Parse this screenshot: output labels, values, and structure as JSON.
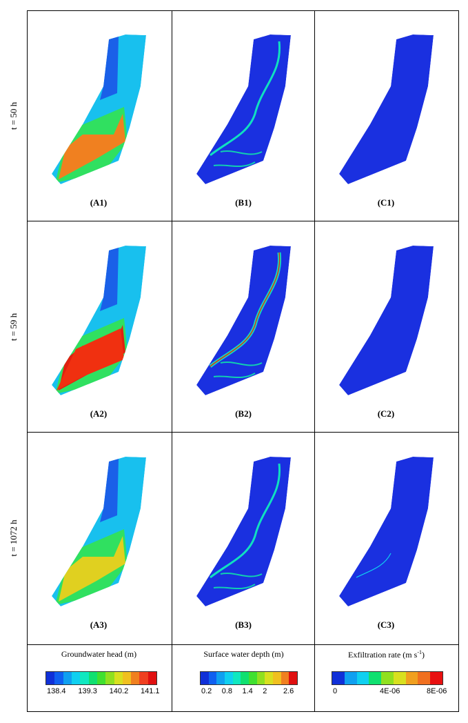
{
  "rows": [
    {
      "label": "t = 50 h"
    },
    {
      "label": "t = 59 h"
    },
    {
      "label": "t = 1072 h"
    }
  ],
  "panels": [
    [
      "(A1)",
      "(B1)",
      "(C1)"
    ],
    [
      "(A2)",
      "(B2)",
      "(C2)"
    ],
    [
      "(A3)",
      "(B3)",
      "(C3)"
    ]
  ],
  "legends": [
    {
      "title": "Groundwater head (m)",
      "ticks": [
        "138.4",
        "139.3",
        "140.2",
        "141.1"
      ],
      "colors": [
        "#1030d8",
        "#1060f0",
        "#10a0f0",
        "#10d0f0",
        "#10e8c0",
        "#10e070",
        "#40e030",
        "#90e020",
        "#d8e020",
        "#f0c020",
        "#f08020",
        "#f04020",
        "#e01010"
      ]
    },
    {
      "title": "Surface water depth (m)",
      "ticks": [
        "0.2",
        "0.8",
        "1.4",
        "2",
        "2.6"
      ],
      "colors": [
        "#1030d8",
        "#1060f0",
        "#10a0f0",
        "#10d0f0",
        "#10e8c0",
        "#10e070",
        "#40e030",
        "#90e020",
        "#d8e020",
        "#f0c020",
        "#f08020",
        "#e01010"
      ]
    },
    {
      "title": "Exfiltration rate (m s",
      "title_sup": "-1",
      "title_end": ")",
      "ticks": [
        "0",
        "4E-06",
        "8E-06"
      ],
      "colors": [
        "#1030d8",
        "#10a0f0",
        "#10d0f0",
        "#10e070",
        "#90e020",
        "#d8e020",
        "#f0a020",
        "#f07020",
        "#e81010"
      ]
    }
  ]
}
